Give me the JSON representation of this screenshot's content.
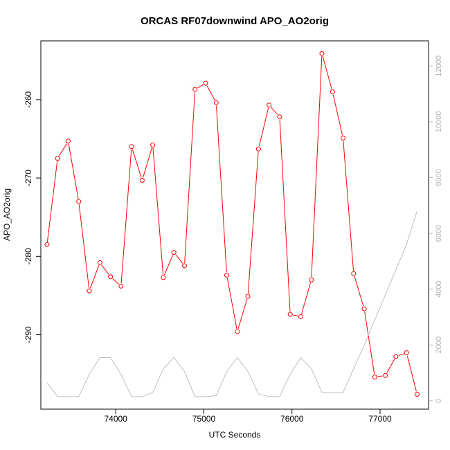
{
  "chart_data": {
    "type": "line",
    "title": "ORCAS RF07downwind APO_AO2orig",
    "xlabel": "UTC Seconds",
    "ylabel": "APO_AO2orig",
    "xlim": [
      73150,
      77550
    ],
    "ylim": [
      -299.5,
      -252.5
    ],
    "y2lim": [
      -300,
      12900
    ],
    "x_ticks": [
      74000,
      75000,
      76000,
      77000
    ],
    "y_ticks": [
      -290,
      -280,
      -270,
      -260
    ],
    "y2_ticks": [
      0,
      2000,
      4000,
      6000,
      8000,
      10000,
      12000
    ],
    "x_tick_labels": [
      "74000",
      "75000",
      "76000",
      "77000"
    ],
    "y_tick_labels": [
      "-290",
      "-280",
      "-270",
      "-260"
    ],
    "y2_tick_labels": [
      "0",
      "2000",
      "4000",
      "6000",
      "8000",
      "10000",
      "12000"
    ],
    "grid": false,
    "series": [
      {
        "color": "#ff0000",
        "marker": "open-circle",
        "axis": "left",
        "x": [
          73220,
          73340,
          73460,
          73580,
          73700,
          73820,
          73940,
          74060,
          74180,
          74300,
          74420,
          74540,
          74660,
          74780,
          74900,
          75020,
          75140,
          75260,
          75380,
          75500,
          75620,
          75740,
          75860,
          75980,
          76100,
          76220,
          76340,
          76460,
          76580,
          76700,
          76820,
          76940,
          77060,
          77180,
          77300,
          77420
        ],
        "y": [
          -278.5,
          -267.5,
          -265.3,
          -273.0,
          -284.4,
          -280.8,
          -282.6,
          -283.8,
          -266.0,
          -270.3,
          -265.8,
          -282.7,
          -279.5,
          -281.2,
          -258.7,
          -257.9,
          -260.4,
          -282.4,
          -289.6,
          -285.1,
          -266.3,
          -260.7,
          -262.2,
          -287.4,
          -287.7,
          -283.0,
          -254.1,
          -259.0,
          -264.9,
          -282.2,
          -286.7,
          -295.4,
          -295.2,
          -292.8,
          -292.3,
          -297.6
        ]
      },
      {
        "color": "#bebebe",
        "marker": "none",
        "axis": "right",
        "x": [
          73220,
          73340,
          73460,
          73580,
          73700,
          73820,
          73940,
          74060,
          74180,
          74300,
          74420,
          74540,
          74660,
          74780,
          74900,
          75020,
          75140,
          75260,
          75380,
          75500,
          75620,
          75740,
          75860,
          75980,
          76100,
          76220,
          76340,
          76460,
          76580,
          76700,
          76820,
          76940,
          77060,
          77180,
          77300,
          77420
        ],
        "y": [
          650,
          150,
          150,
          150,
          950,
          1550,
          1550,
          950,
          150,
          150,
          300,
          1150,
          1550,
          1050,
          150,
          150,
          180,
          1050,
          1550,
          1050,
          250,
          150,
          150,
          950,
          1550,
          1150,
          300,
          300,
          300,
          1150,
          2000,
          2900,
          3800,
          4700,
          5600,
          6800
        ]
      }
    ]
  }
}
